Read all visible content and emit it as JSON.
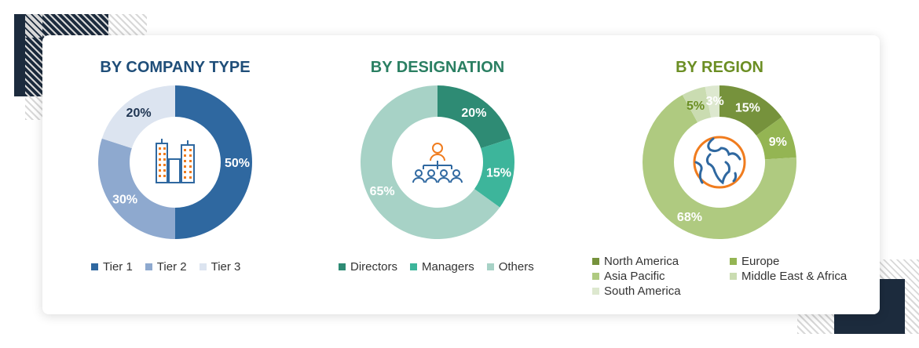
{
  "chart_data": [
    {
      "type": "pie",
      "title": "BY COMPANY TYPE",
      "title_color": "#1f4e79",
      "icon": "buildings-icon",
      "categories": [
        "Tier 1",
        "Tier 2",
        "Tier 3"
      ],
      "values": [
        50,
        30,
        20
      ],
      "labels": [
        "50%",
        "30%",
        "20%"
      ],
      "colors": [
        "#2f68a0",
        "#8ea9cf",
        "#dce4f0"
      ],
      "label_colors": [
        "#fff",
        "#fff",
        "#1f3552"
      ],
      "legend": "bottom"
    },
    {
      "type": "pie",
      "title": "BY DESIGNATION",
      "title_color": "#2a7f62",
      "icon": "organization-people-icon",
      "categories": [
        "Directors",
        "Managers",
        "Others"
      ],
      "values": [
        20,
        15,
        65
      ],
      "labels": [
        "20%",
        "15%",
        "65%"
      ],
      "colors": [
        "#2e8b74",
        "#3db59b",
        "#a7d2c6"
      ],
      "label_colors": [
        "#fff",
        "#fff",
        "#fff"
      ],
      "legend": "bottom"
    },
    {
      "type": "pie",
      "title": "BY REGION",
      "title_color": "#6b8e23",
      "icon": "globe-icon",
      "categories": [
        "North America",
        "Europe",
        "Asia Pacific",
        "Middle East & Africa",
        "South America"
      ],
      "values": [
        15,
        9,
        68,
        5,
        3
      ],
      "labels": [
        "15%",
        "9%",
        "68%",
        "5%",
        "3%"
      ],
      "colors": [
        "#76923c",
        "#94b553",
        "#afca80",
        "#cadcb1",
        "#dde8cf"
      ],
      "label_colors": [
        "#fff",
        "#fff",
        "#fff",
        "#6b8e23",
        "#fff"
      ],
      "legend": "bottom"
    }
  ]
}
